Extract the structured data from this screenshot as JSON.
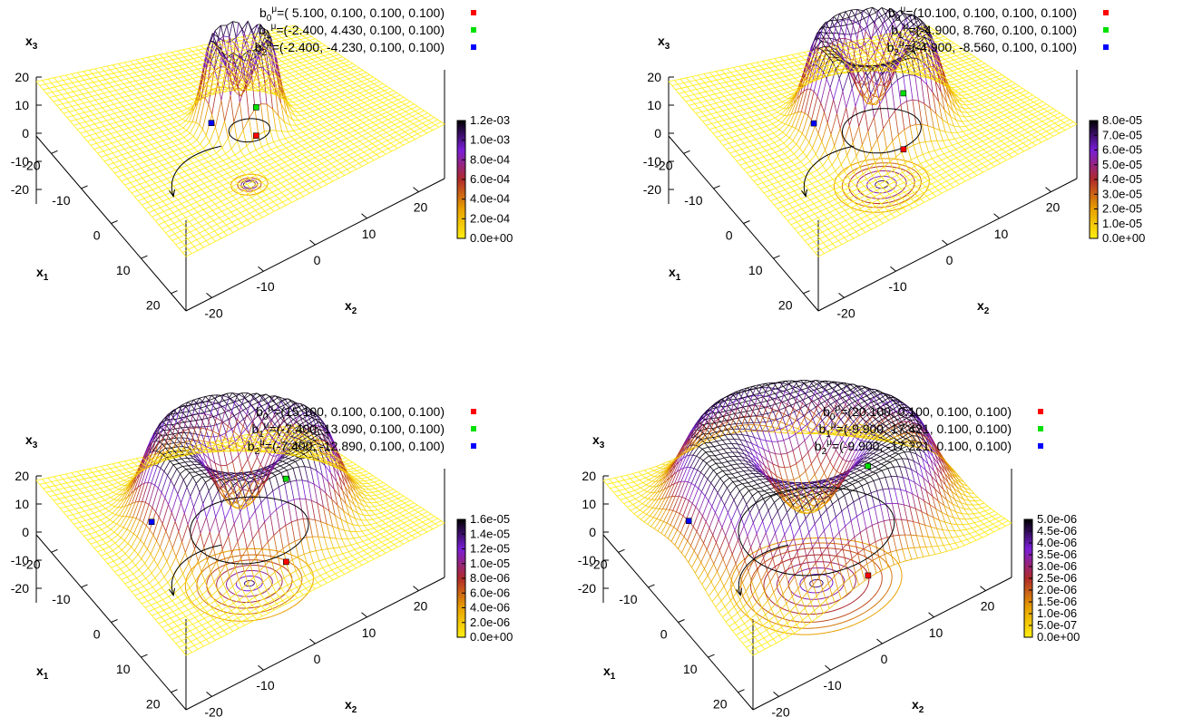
{
  "chart_data": [
    {
      "type": "surface",
      "xlabel": "x",
      "xlabel_sub": "1",
      "ylabel": "x",
      "ylabel_sub": "2",
      "zlabel": "x",
      "zlabel_sub": "3",
      "x_ticks": [
        "-20",
        "-10",
        "0",
        "10",
        "20"
      ],
      "y_ticks": [
        "-20",
        "-10",
        "0",
        "10",
        "20"
      ],
      "z_ticks": [
        "20",
        "10",
        "0",
        "-10",
        "-20"
      ],
      "surface": {
        "ring_radius": 4.6,
        "ring_width": 2.4,
        "center_dip": 0.45,
        "peak": 0.0012
      },
      "contour_radii": [
        5.6,
        3.6,
        2.5,
        1.8
      ],
      "legend": [
        {
          "prefix": "b",
          "sub": "0",
          "sup": "μ",
          "value": "=( 5.100,  0.100,  0.100,  0.100)",
          "color": "#ff0000"
        },
        {
          "prefix": "b",
          "sub": "1",
          "sup": "μ",
          "value": "=(-2.400,  4.430,  0.100,  0.100)",
          "color": "#00e000"
        },
        {
          "prefix": "b",
          "sub": "2",
          "sup": "μ",
          "value": "=(-2.400, -4.230,  0.100,  0.100)",
          "color": "#0000ff"
        }
      ],
      "points": [
        {
          "x1": 5.1,
          "x2": 0.1,
          "x3": 0.1,
          "color": "#ff0000"
        },
        {
          "x1": -2.4,
          "x2": 4.43,
          "x3": 0.1,
          "color": "#00e000"
        },
        {
          "x1": -2.4,
          "x2": -4.23,
          "x3": 0.1,
          "color": "#0000ff"
        }
      ],
      "colorbar_ticks": [
        "1.2e-03",
        "1.0e-03",
        "8.0e-04",
        "6.0e-04",
        "4.0e-04",
        "2.0e-04",
        "0.0e+00"
      ]
    },
    {
      "type": "surface",
      "xlabel": "x",
      "xlabel_sub": "1",
      "ylabel": "x",
      "ylabel_sub": "2",
      "zlabel": "x",
      "zlabel_sub": "3",
      "x_ticks": [
        "-20",
        "-10",
        "0",
        "10",
        "20"
      ],
      "y_ticks": [
        "-20",
        "-10",
        "0",
        "10",
        "20"
      ],
      "z_ticks": [
        "20",
        "10",
        "0",
        "-10",
        "-20"
      ],
      "surface": {
        "ring_radius": 8.8,
        "ring_width": 3.6,
        "center_dip": 0.55,
        "peak": 8e-05
      },
      "contour_radii": [
        14.5,
        12.0,
        10.0,
        7.5,
        4.5,
        2.0
      ],
      "legend": [
        {
          "prefix": "b",
          "sub": "0",
          "sup": "μ",
          "value": "=(10.100,  0.100,  0.100,  0.100)",
          "color": "#ff0000"
        },
        {
          "prefix": "b",
          "sub": "1",
          "sup": "μ",
          "value": "=(-4.900,  8.760,  0.100,  0.100)",
          "color": "#00e000"
        },
        {
          "prefix": "b",
          "sub": "2",
          "sup": "μ",
          "value": "=(-4.900, -8.560,  0.100,  0.100)",
          "color": "#0000ff"
        }
      ],
      "points": [
        {
          "x1": 10.1,
          "x2": 0.1,
          "x3": 0.1,
          "color": "#ff0000"
        },
        {
          "x1": -4.9,
          "x2": 8.76,
          "x3": 0.1,
          "color": "#00e000"
        },
        {
          "x1": -4.9,
          "x2": -8.56,
          "x3": 0.1,
          "color": "#0000ff"
        }
      ],
      "colorbar_ticks": [
        "8.0e-05",
        "7.0e-05",
        "6.0e-05",
        "5.0e-05",
        "4.0e-05",
        "3.0e-05",
        "2.0e-05",
        "1.0e-05",
        "0.0e+00"
      ]
    },
    {
      "type": "surface",
      "xlabel": "x",
      "xlabel_sub": "1",
      "ylabel": "x",
      "ylabel_sub": "2",
      "zlabel": "x",
      "zlabel_sub": "3",
      "x_ticks": [
        "-20",
        "-10",
        "0",
        "10",
        "20"
      ],
      "y_ticks": [
        "-20",
        "-10",
        "0",
        "10",
        "20"
      ],
      "z_ticks": [
        "20",
        "10",
        "0",
        "-10",
        "-20"
      ],
      "surface": {
        "ring_radius": 13.2,
        "ring_width": 4.8,
        "center_dip": 0.6,
        "peak": 1.6e-05
      },
      "contour_radii": [
        19.5,
        16.0,
        13.0,
        10.0,
        7.0,
        4.0,
        1.5
      ],
      "legend": [
        {
          "prefix": "b",
          "sub": "0",
          "sup": "μ",
          "value": "=(15.100,  0.100,  0.100,  0.100)",
          "color": "#ff0000"
        },
        {
          "prefix": "b",
          "sub": "1",
          "sup": "μ",
          "value": "=(-7.400,  13.090,  0.100,  0.100)",
          "color": "#00e000"
        },
        {
          "prefix": "b",
          "sub": "2",
          "sup": "μ",
          "value": "=(-7.400, -12.890,  0.100,  0.100)",
          "color": "#0000ff"
        }
      ],
      "points": [
        {
          "x1": 15.1,
          "x2": 0.1,
          "x3": 0.1,
          "color": "#ff0000"
        },
        {
          "x1": -7.4,
          "x2": 13.09,
          "x3": 0.1,
          "color": "#00e000"
        },
        {
          "x1": -7.4,
          "x2": -12.89,
          "x3": 0.1,
          "color": "#0000ff"
        }
      ],
      "colorbar_ticks": [
        "1.6e-05",
        "1.4e-05",
        "1.2e-05",
        "1.0e-05",
        "8.0e-06",
        "6.0e-06",
        "4.0e-06",
        "2.0e-06",
        "0.0e+00"
      ]
    },
    {
      "type": "surface",
      "xlabel": "x",
      "xlabel_sub": "1",
      "ylabel": "x",
      "ylabel_sub": "2",
      "zlabel": "x",
      "zlabel_sub": "3",
      "x_ticks": [
        "-20",
        "-10",
        "0",
        "10",
        "20"
      ],
      "y_ticks": [
        "-20",
        "-10",
        "0",
        "10",
        "20"
      ],
      "z_ticks": [
        "20",
        "10",
        "0",
        "-10",
        "-20"
      ],
      "surface": {
        "ring_radius": 17.4,
        "ring_width": 6.2,
        "center_dip": 0.65,
        "peak": 5e-06
      },
      "contour_radii": [
        26.0,
        23.0,
        20.0,
        16.0,
        12.0,
        8.5,
        5.0,
        2.0
      ],
      "legend": [
        {
          "prefix": "b",
          "sub": "0",
          "sup": "μ",
          "value": "=(20.100,   0.100, 0.100,  0.100)",
          "color": "#ff0000"
        },
        {
          "prefix": "b",
          "sub": "1",
          "sup": "μ",
          "value": "=(-9.900,  17.421, 0.100,  0.100)",
          "color": "#00e000"
        },
        {
          "prefix": "b",
          "sub": "2",
          "sup": "μ",
          "value": "=(-9.900, -17.221, 0.100,  0.100)",
          "color": "#0000ff"
        }
      ],
      "points": [
        {
          "x1": 20.1,
          "x2": 0.1,
          "x3": 0.1,
          "color": "#ff0000"
        },
        {
          "x1": -9.9,
          "x2": 17.421,
          "x3": 0.1,
          "color": "#00e000"
        },
        {
          "x1": -9.9,
          "x2": -17.221,
          "x3": 0.1,
          "color": "#0000ff"
        }
      ],
      "colorbar_ticks": [
        "5.0e-06",
        "4.5e-06",
        "4.0e-06",
        "3.5e-06",
        "3.0e-06",
        "2.5e-06",
        "2.0e-06",
        "1.5e-06",
        "1.0e-06",
        "5.0e-07",
        "0.0e+00"
      ]
    }
  ]
}
